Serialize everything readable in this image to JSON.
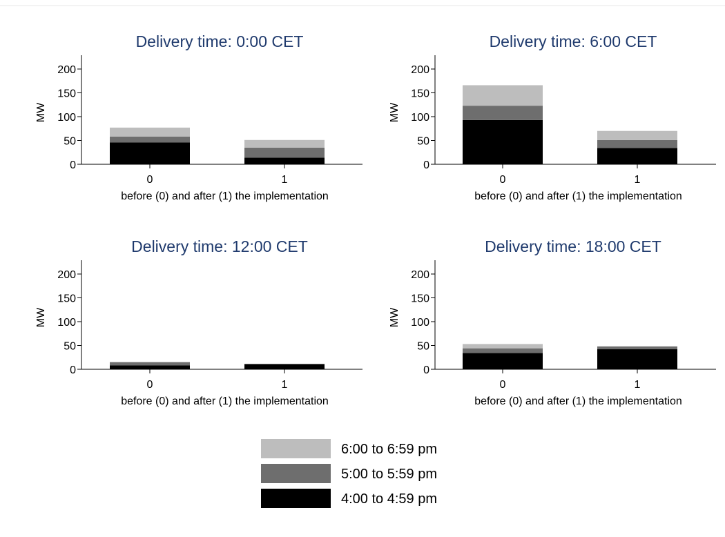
{
  "chart_data": {
    "type": "bar",
    "stacked": true,
    "legend_position": "bottom-center",
    "grid": false,
    "series_colors": {
      "6:00 to 6:59 pm": "#bdbdbd",
      "5:00 to 5:59 pm": "#6e6e6e",
      "4:00 to 4:59 pm": "#000000"
    },
    "legend": [
      "6:00 to 6:59 pm",
      "5:00 to 5:59 pm",
      "4:00 to 4:59 pm"
    ],
    "panels": [
      {
        "title": "Delivery time: 0:00 CET",
        "xlabel": "before (0) and after (1) the implementation",
        "ylabel": "MW",
        "ylim": [
          0,
          220
        ],
        "yticks": [
          0,
          50,
          100,
          150,
          200
        ],
        "categories": [
          "0",
          "1"
        ],
        "series": [
          {
            "name": "4:00 to 4:59 pm",
            "values": [
              46,
              14
            ]
          },
          {
            "name": "5:00 to 5:59 pm",
            "values": [
              12,
              21
            ]
          },
          {
            "name": "6:00 to 6:59 pm",
            "values": [
              19,
              16
            ]
          }
        ]
      },
      {
        "title": "Delivery time: 6:00 CET",
        "xlabel": "before (0) and after (1) the implementation",
        "ylabel": "MW",
        "ylim": [
          0,
          220
        ],
        "yticks": [
          0,
          50,
          100,
          150,
          200
        ],
        "categories": [
          "0",
          "1"
        ],
        "series": [
          {
            "name": "4:00 to 4:59 pm",
            "values": [
              93,
              34
            ]
          },
          {
            "name": "5:00 to 5:59 pm",
            "values": [
              30,
              17
            ]
          },
          {
            "name": "6:00 to 6:59 pm",
            "values": [
              43,
              19
            ]
          }
        ]
      },
      {
        "title": "Delivery time: 12:00 CET",
        "xlabel": "before (0) and after (1) the implementation",
        "ylabel": "MW",
        "ylim": [
          0,
          220
        ],
        "yticks": [
          0,
          50,
          100,
          150,
          200
        ],
        "categories": [
          "0",
          "1"
        ],
        "series": [
          {
            "name": "4:00 to 4:59 pm",
            "values": [
              8,
              11
            ]
          },
          {
            "name": "5:00 to 5:59 pm",
            "values": [
              7,
              0
            ]
          },
          {
            "name": "6:00 to 6:59 pm",
            "values": [
              0,
              0
            ]
          }
        ]
      },
      {
        "title": "Delivery time: 18:00 CET",
        "xlabel": "before (0) and after (1) the implementation",
        "ylabel": "MW",
        "ylim": [
          0,
          220
        ],
        "yticks": [
          0,
          50,
          100,
          150,
          200
        ],
        "categories": [
          "0",
          "1"
        ],
        "series": [
          {
            "name": "4:00 to 4:59 pm",
            "values": [
              34,
              42
            ]
          },
          {
            "name": "5:00 to 5:59 pm",
            "values": [
              10,
              6
            ]
          },
          {
            "name": "6:00 to 6:59 pm",
            "values": [
              9,
              0
            ]
          }
        ]
      }
    ]
  }
}
